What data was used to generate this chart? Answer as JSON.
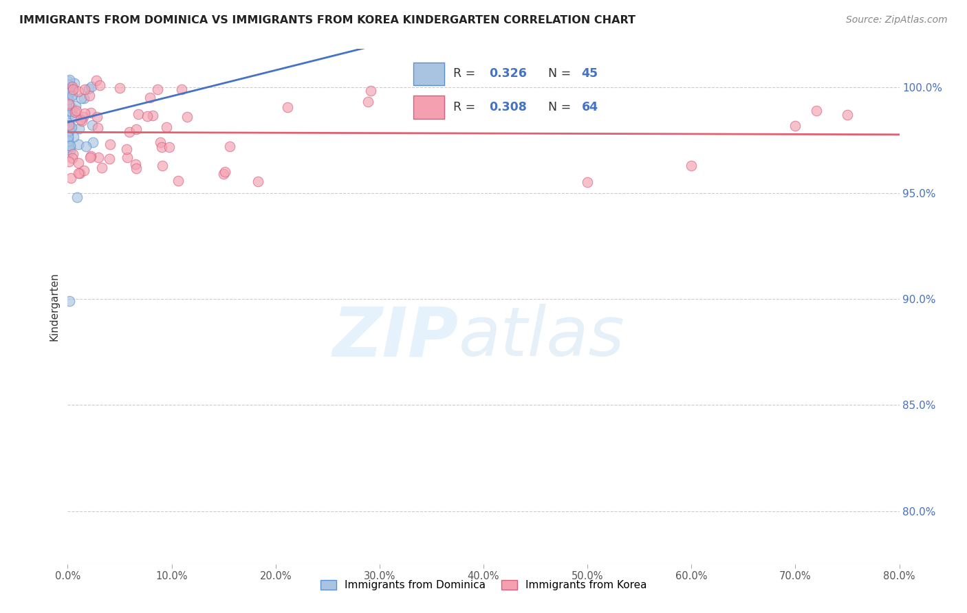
{
  "title": "IMMIGRANTS FROM DOMINICA VS IMMIGRANTS FROM KOREA KINDERGARTEN CORRELATION CHART",
  "source": "Source: ZipAtlas.com",
  "ylabel": "Kindergarten",
  "ytick_labels": [
    "100.0%",
    "95.0%",
    "90.0%",
    "85.0%",
    "80.0%"
  ],
  "ytick_values": [
    1.0,
    0.95,
    0.9,
    0.85,
    0.8
  ],
  "xmin": 0.0,
  "xmax": 0.8,
  "ymin": 0.775,
  "ymax": 1.018,
  "legend_R_dominica": "0.326",
  "legend_N_dominica": "45",
  "legend_R_korea": "0.308",
  "legend_N_korea": "64",
  "color_dominica_fill": "#a8c4e0",
  "color_korea_fill": "#f4a0b0",
  "color_dominica_edge": "#5b8fd4",
  "color_korea_edge": "#d46080",
  "color_dominica_line": "#4472c4",
  "color_korea_line": "#e06070",
  "color_text_blue": "#4472c4",
  "color_title": "#222222",
  "color_source": "#888888",
  "color_grid": "#cccccc",
  "color_right_ytick": "#4472c4"
}
